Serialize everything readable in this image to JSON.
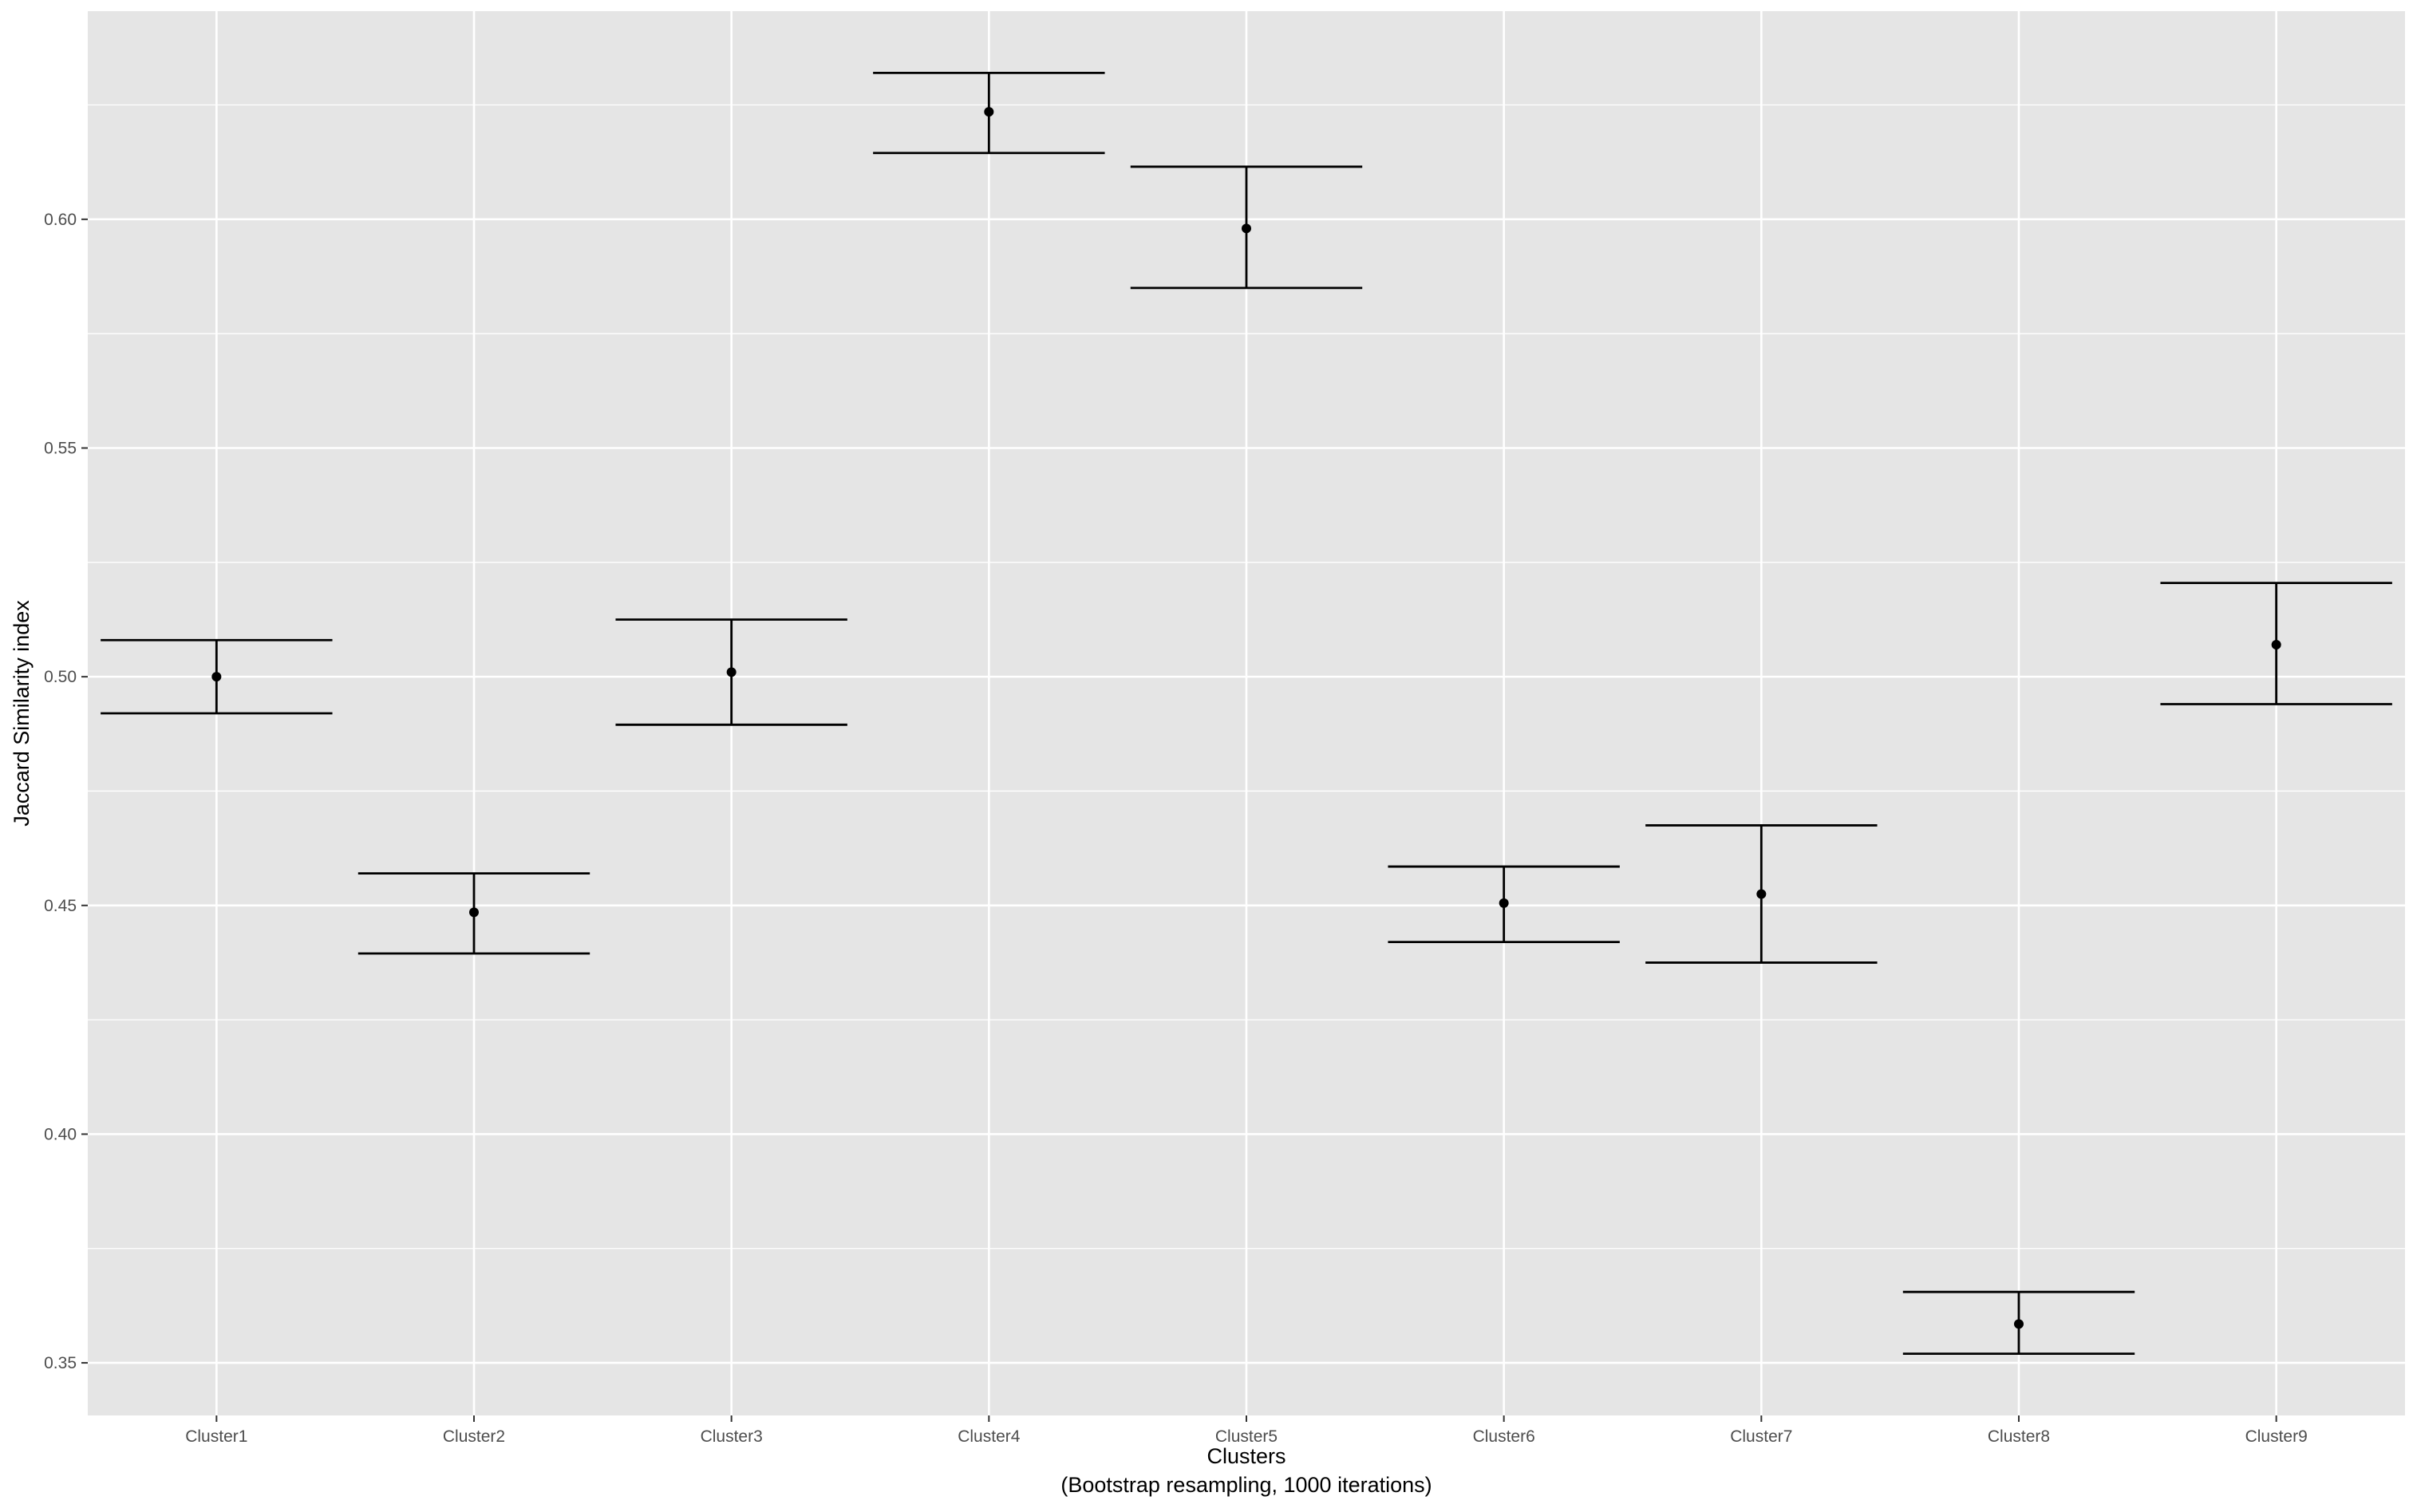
{
  "chart_data": {
    "type": "errorbar",
    "title": "",
    "xlabel": "Clusters",
    "xlabel_subtitle": "(Bootstrap resampling, 1000 iterations)",
    "ylabel": "Jaccard Similarity index",
    "categories": [
      "Cluster1",
      "Cluster2",
      "Cluster3",
      "Cluster4",
      "Cluster5",
      "Cluster6",
      "Cluster7",
      "Cluster8",
      "Cluster9"
    ],
    "series": [
      {
        "values": [
          0.5,
          0.4485,
          0.501,
          0.6235,
          0.598,
          0.4505,
          0.4525,
          0.3585,
          0.507
        ],
        "lower": [
          0.492,
          0.4395,
          0.4895,
          0.6145,
          0.585,
          0.442,
          0.4375,
          0.352,
          0.494
        ],
        "upper": [
          0.508,
          0.457,
          0.5125,
          0.632,
          0.6115,
          0.4585,
          0.4675,
          0.3655,
          0.5205
        ]
      }
    ],
    "ylim": [
      0.3385,
      0.6455
    ],
    "yticks": [
      0.35,
      0.4,
      0.45,
      0.5,
      0.55,
      0.6
    ],
    "ytick_labels": [
      "0.35",
      "0.40",
      "0.45",
      "0.50",
      "0.55",
      "0.60"
    ],
    "grid": true,
    "legend": "none",
    "colors": {
      "panel_background": "#e5e5e5",
      "grid": "#ffffff",
      "marks": "#000000",
      "tick_text": "#4d4d4d",
      "axis_title": "#000000"
    }
  }
}
